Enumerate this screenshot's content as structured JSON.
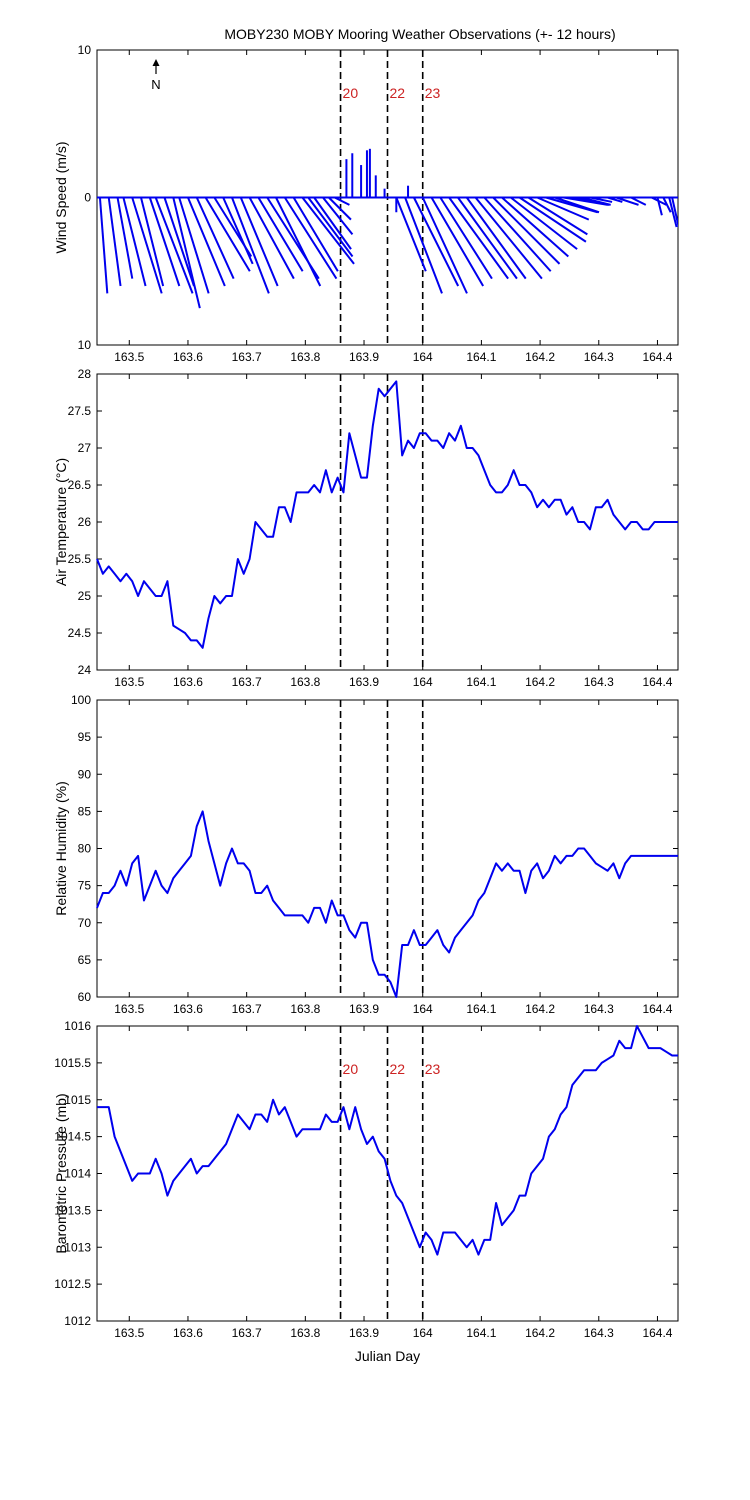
{
  "title": "MOBY230 MOBY Mooring Weather Observations (+- 12 hours)",
  "north_label": "N",
  "colors": {
    "series": "#0000ee",
    "events": "#000000",
    "event_labels": "#cc2222",
    "axes": "#000000",
    "background": "#ffffff"
  },
  "events": [
    {
      "label": "20",
      "x": 163.86
    },
    {
      "label": "22",
      "x": 163.94
    },
    {
      "label": "23",
      "x": 164.0
    }
  ],
  "chart_data": [
    {
      "type": "wind-stick",
      "ylabel": "Wind Speed (m/s)",
      "xlim": [
        163.445,
        164.435
      ],
      "ylim": [
        -10,
        10
      ],
      "y_ticks": [
        10,
        0,
        10
      ],
      "x_ticks": [
        "163.5",
        "163.6",
        "163.7",
        "163.8",
        "163.9",
        "164",
        "164.1",
        "164.2",
        "164.3",
        "164.4"
      ],
      "show_event_labels": true,
      "sticks": [
        {
          "x": 163.45,
          "u": 0.5,
          "v": -6.5
        },
        {
          "x": 163.465,
          "u": 0.8,
          "v": -6.0
        },
        {
          "x": 163.48,
          "u": 1.0,
          "v": -5.5
        },
        {
          "x": 163.49,
          "u": 1.5,
          "v": -6.0
        },
        {
          "x": 163.505,
          "u": 2.0,
          "v": -6.5
        },
        {
          "x": 163.52,
          "u": 1.5,
          "v": -6.0
        },
        {
          "x": 163.535,
          "u": 2.0,
          "v": -6.0
        },
        {
          "x": 163.545,
          "u": 2.5,
          "v": -6.5
        },
        {
          "x": 163.56,
          "u": 2.0,
          "v": -6.0
        },
        {
          "x": 163.575,
          "u": 1.8,
          "v": -7.5
        },
        {
          "x": 163.585,
          "u": 2.0,
          "v": -6.5
        },
        {
          "x": 163.6,
          "u": 2.5,
          "v": -6.0
        },
        {
          "x": 163.615,
          "u": 2.5,
          "v": -5.5
        },
        {
          "x": 163.63,
          "u": 3.0,
          "v": -5.0
        },
        {
          "x": 163.645,
          "u": 2.5,
          "v": -4.0
        },
        {
          "x": 163.66,
          "u": 2.0,
          "v": -4.5
        },
        {
          "x": 163.675,
          "u": 2.5,
          "v": -6.5
        },
        {
          "x": 163.69,
          "u": 2.5,
          "v": -6.0
        },
        {
          "x": 163.705,
          "u": 3.0,
          "v": -5.5
        },
        {
          "x": 163.72,
          "u": 3.0,
          "v": -5.0
        },
        {
          "x": 163.735,
          "u": 3.5,
          "v": -5.5
        },
        {
          "x": 163.75,
          "u": 3.0,
          "v": -6.0
        },
        {
          "x": 163.765,
          "u": 3.5,
          "v": -5.5
        },
        {
          "x": 163.78,
          "u": 3.0,
          "v": -5.0
        },
        {
          "x": 163.795,
          "u": 3.5,
          "v": -4.5
        },
        {
          "x": 163.805,
          "u": 3.0,
          "v": -4.0
        },
        {
          "x": 163.815,
          "u": 2.5,
          "v": -3.5
        },
        {
          "x": 163.83,
          "u": 2.0,
          "v": -2.5
        },
        {
          "x": 163.84,
          "u": 1.5,
          "v": -1.5
        },
        {
          "x": 163.85,
          "u": 1.0,
          "v": -0.5
        },
        {
          "x": 163.87,
          "u": 0.0,
          "v": 2.6
        },
        {
          "x": 163.88,
          "u": 0.0,
          "v": 3.0
        },
        {
          "x": 163.895,
          "u": 0.0,
          "v": 2.2
        },
        {
          "x": 163.905,
          "u": 0.0,
          "v": 3.2
        },
        {
          "x": 163.91,
          "u": 0.0,
          "v": 3.3
        },
        {
          "x": 163.92,
          "u": 0.0,
          "v": 1.5
        },
        {
          "x": 163.935,
          "u": 0.0,
          "v": 0.6
        },
        {
          "x": 163.955,
          "u": 0.0,
          "v": -1.0
        },
        {
          "x": 163.975,
          "u": 0.0,
          "v": 0.8
        },
        {
          "x": 163.955,
          "u": 2.0,
          "v": -5.0
        },
        {
          "x": 163.97,
          "u": 2.5,
          "v": -6.5
        },
        {
          "x": 163.985,
          "u": 3.0,
          "v": -6.0
        },
        {
          "x": 164.0,
          "u": 3.0,
          "v": -6.5
        },
        {
          "x": 164.015,
          "u": 3.5,
          "v": -6.0
        },
        {
          "x": 164.03,
          "u": 3.5,
          "v": -5.5
        },
        {
          "x": 164.045,
          "u": 4.0,
          "v": -5.5
        },
        {
          "x": 164.06,
          "u": 4.0,
          "v": -5.5
        },
        {
          "x": 164.075,
          "u": 4.0,
          "v": -5.5
        },
        {
          "x": 164.09,
          "u": 4.5,
          "v": -5.5
        },
        {
          "x": 164.105,
          "u": 4.5,
          "v": -5.0
        },
        {
          "x": 164.12,
          "u": 4.5,
          "v": -4.5
        },
        {
          "x": 164.135,
          "u": 4.5,
          "v": -4.0
        },
        {
          "x": 164.15,
          "u": 4.5,
          "v": -3.5
        },
        {
          "x": 164.165,
          "u": 4.5,
          "v": -3.0
        },
        {
          "x": 164.18,
          "u": 4.0,
          "v": -2.5
        },
        {
          "x": 164.195,
          "u": 3.5,
          "v": -1.5
        },
        {
          "x": 164.21,
          "u": 3.5,
          "v": -1.0
        },
        {
          "x": 164.225,
          "u": 3.0,
          "v": -1.0
        },
        {
          "x": 164.24,
          "u": 3.0,
          "v": -0.5
        },
        {
          "x": 164.255,
          "u": 2.5,
          "v": -0.5
        },
        {
          "x": 164.27,
          "u": 2.0,
          "v": -0.5
        },
        {
          "x": 164.285,
          "u": 1.5,
          "v": -0.3
        },
        {
          "x": 164.315,
          "u": 1.0,
          "v": -0.3
        },
        {
          "x": 164.33,
          "u": 1.5,
          "v": -0.5
        },
        {
          "x": 164.355,
          "u": 1.0,
          "v": -0.5
        },
        {
          "x": 164.39,
          "u": 1.0,
          "v": -0.5
        },
        {
          "x": 164.4,
          "u": 0.3,
          "v": -1.2
        },
        {
          "x": 164.41,
          "u": 0.5,
          "v": -1.0
        },
        {
          "x": 164.42,
          "u": 0.5,
          "v": -2.0
        },
        {
          "x": 164.425,
          "u": 1.0,
          "v": -4.5
        }
      ]
    },
    {
      "type": "line",
      "ylabel": "Air Temperature (°C)",
      "xlim": [
        163.445,
        164.435
      ],
      "ylim": [
        24,
        28
      ],
      "y_ticks": [
        "24",
        "24.5",
        "25",
        "25.5",
        "26",
        "26.5",
        "27",
        "27.5",
        "28"
      ],
      "x_ticks": [
        "163.5",
        "163.6",
        "163.7",
        "163.8",
        "163.9",
        "164",
        "164.1",
        "164.2",
        "164.3",
        "164.4"
      ],
      "show_event_labels": false,
      "x": [
        163.445,
        163.455,
        163.465,
        163.475,
        163.485,
        163.495,
        163.505,
        163.515,
        163.525,
        163.535,
        163.545,
        163.555,
        163.565,
        163.575,
        163.585,
        163.595,
        163.605,
        163.615,
        163.625,
        163.635,
        163.645,
        163.655,
        163.665,
        163.675,
        163.685,
        163.695,
        163.705,
        163.715,
        163.725,
        163.735,
        163.745,
        163.755,
        163.765,
        163.775,
        163.785,
        163.795,
        163.805,
        163.815,
        163.825,
        163.835,
        163.845,
        163.855,
        163.865,
        163.875,
        163.885,
        163.895,
        163.905,
        163.915,
        163.925,
        163.935,
        163.945,
        163.955,
        163.965,
        163.975,
        163.985,
        163.995,
        164.005,
        164.015,
        164.025,
        164.035,
        164.045,
        164.055,
        164.065,
        164.075,
        164.085,
        164.095,
        164.105,
        164.115,
        164.125,
        164.135,
        164.145,
        164.155,
        164.165,
        164.175,
        164.185,
        164.195,
        164.205,
        164.215,
        164.225,
        164.235,
        164.245,
        164.255,
        164.265,
        164.275,
        164.285,
        164.295,
        164.305,
        164.315,
        164.325,
        164.335,
        164.345,
        164.355,
        164.365,
        164.375,
        164.385,
        164.395,
        164.405,
        164.415,
        164.425,
        164.435
      ],
      "values": [
        25.5,
        25.3,
        25.4,
        25.3,
        25.2,
        25.3,
        25.2,
        25.0,
        25.2,
        25.1,
        25.0,
        25.0,
        25.2,
        24.6,
        24.55,
        24.5,
        24.4,
        24.4,
        24.3,
        24.7,
        25.0,
        24.9,
        25.0,
        25.0,
        25.5,
        25.3,
        25.5,
        26.0,
        25.9,
        25.8,
        25.8,
        26.2,
        26.2,
        26.0,
        26.4,
        26.4,
        26.4,
        26.5,
        26.4,
        26.7,
        26.4,
        26.6,
        26.4,
        27.2,
        26.9,
        26.6,
        26.6,
        27.3,
        27.8,
        27.7,
        27.8,
        27.9,
        26.9,
        27.1,
        27.0,
        27.2,
        27.2,
        27.1,
        27.1,
        27.0,
        27.2,
        27.1,
        27.3,
        27.0,
        27.0,
        26.9,
        26.7,
        26.5,
        26.4,
        26.4,
        26.5,
        26.7,
        26.5,
        26.5,
        26.4,
        26.2,
        26.3,
        26.2,
        26.3,
        26.3,
        26.1,
        26.2,
        26.0,
        26.0,
        25.9,
        26.2,
        26.2,
        26.3,
        26.1,
        26.0,
        25.9,
        26.0,
        26.0,
        25.9,
        25.9,
        26.0,
        26.0,
        26.0,
        26.0,
        26.0
      ]
    },
    {
      "type": "line",
      "ylabel": "Relative Humidity (%)",
      "xlim": [
        163.445,
        164.435
      ],
      "ylim": [
        60,
        100
      ],
      "y_ticks": [
        "60",
        "65",
        "70",
        "75",
        "80",
        "85",
        "90",
        "95",
        "100"
      ],
      "x_ticks": [
        "163.5",
        "163.6",
        "163.7",
        "163.8",
        "163.9",
        "164",
        "164.1",
        "164.2",
        "164.3",
        "164.4"
      ],
      "show_event_labels": false,
      "x": [
        163.445,
        163.455,
        163.465,
        163.475,
        163.485,
        163.495,
        163.505,
        163.515,
        163.525,
        163.535,
        163.545,
        163.555,
        163.565,
        163.575,
        163.585,
        163.595,
        163.605,
        163.615,
        163.625,
        163.635,
        163.645,
        163.655,
        163.665,
        163.675,
        163.685,
        163.695,
        163.705,
        163.715,
        163.725,
        163.735,
        163.745,
        163.755,
        163.765,
        163.775,
        163.785,
        163.795,
        163.805,
        163.815,
        163.825,
        163.835,
        163.845,
        163.855,
        163.865,
        163.875,
        163.885,
        163.895,
        163.905,
        163.915,
        163.925,
        163.935,
        163.945,
        163.955,
        163.965,
        163.975,
        163.985,
        163.995,
        164.005,
        164.015,
        164.025,
        164.035,
        164.045,
        164.055,
        164.065,
        164.075,
        164.085,
        164.095,
        164.105,
        164.115,
        164.125,
        164.135,
        164.145,
        164.155,
        164.165,
        164.175,
        164.185,
        164.195,
        164.205,
        164.215,
        164.225,
        164.235,
        164.245,
        164.255,
        164.265,
        164.275,
        164.285,
        164.295,
        164.305,
        164.315,
        164.325,
        164.335,
        164.345,
        164.355,
        164.365,
        164.375,
        164.385,
        164.395,
        164.405,
        164.415,
        164.425,
        164.435
      ],
      "values": [
        72,
        74,
        74,
        75,
        77,
        75,
        78,
        79,
        73,
        75,
        77,
        75,
        74,
        76,
        77,
        78,
        79,
        83,
        85,
        81,
        78,
        75,
        78,
        80,
        78,
        78,
        77,
        74,
        74,
        75,
        73,
        72,
        71,
        71,
        71,
        71,
        70,
        72,
        72,
        70,
        73,
        71,
        71,
        69,
        68,
        70,
        70,
        65,
        63,
        63,
        62,
        60,
        67,
        67,
        69,
        67,
        67,
        68,
        69,
        67,
        66,
        68,
        69,
        70,
        71,
        73,
        74,
        76,
        78,
        77,
        78,
        77,
        77,
        74,
        77,
        78,
        76,
        77,
        79,
        78,
        79,
        79,
        80,
        80,
        79,
        78,
        77.5,
        77,
        78,
        76,
        78,
        79,
        79,
        79,
        79,
        79,
        79,
        79,
        79,
        79
      ]
    },
    {
      "type": "line",
      "ylabel": "Barometric Pressure (mb)",
      "xlabel": "Julian Day",
      "xlim": [
        163.445,
        164.435
      ],
      "ylim": [
        1012,
        1016
      ],
      "y_ticks": [
        "1012",
        "1012.5",
        "1013",
        "1013.5",
        "1014",
        "1014.5",
        "1015",
        "1015.5",
        "1016"
      ],
      "x_ticks": [
        "163.5",
        "163.6",
        "163.7",
        "163.8",
        "163.9",
        "164",
        "164.1",
        "164.2",
        "164.3",
        "164.4"
      ],
      "show_event_labels": true,
      "x": [
        163.445,
        163.455,
        163.465,
        163.475,
        163.485,
        163.495,
        163.505,
        163.515,
        163.525,
        163.535,
        163.545,
        163.555,
        163.565,
        163.575,
        163.585,
        163.595,
        163.605,
        163.615,
        163.625,
        163.635,
        163.645,
        163.655,
        163.665,
        163.675,
        163.685,
        163.695,
        163.705,
        163.715,
        163.725,
        163.735,
        163.745,
        163.755,
        163.765,
        163.775,
        163.785,
        163.795,
        163.805,
        163.815,
        163.825,
        163.835,
        163.845,
        163.855,
        163.865,
        163.875,
        163.885,
        163.895,
        163.905,
        163.915,
        163.925,
        163.935,
        163.945,
        163.955,
        163.965,
        163.975,
        163.985,
        163.995,
        164.005,
        164.015,
        164.025,
        164.035,
        164.045,
        164.055,
        164.065,
        164.075,
        164.085,
        164.095,
        164.105,
        164.115,
        164.125,
        164.135,
        164.145,
        164.155,
        164.165,
        164.175,
        164.185,
        164.195,
        164.205,
        164.215,
        164.225,
        164.235,
        164.245,
        164.255,
        164.265,
        164.275,
        164.285,
        164.295,
        164.305,
        164.315,
        164.325,
        164.335,
        164.345,
        164.355,
        164.365,
        164.375,
        164.385,
        164.395,
        164.405,
        164.415,
        164.425,
        164.435
      ],
      "values": [
        1014.9,
        1014.9,
        1014.9,
        1014.5,
        1014.3,
        1014.1,
        1013.9,
        1014.0,
        1014.0,
        1014.0,
        1014.2,
        1014.0,
        1013.7,
        1013.9,
        1014.0,
        1014.1,
        1014.2,
        1014.0,
        1014.1,
        1014.1,
        1014.2,
        1014.3,
        1014.4,
        1014.6,
        1014.8,
        1014.7,
        1014.6,
        1014.8,
        1014.8,
        1014.7,
        1015.0,
        1014.8,
        1014.9,
        1014.7,
        1014.5,
        1014.6,
        1014.6,
        1014.6,
        1014.6,
        1014.8,
        1014.7,
        1014.7,
        1014.9,
        1014.6,
        1014.9,
        1014.6,
        1014.4,
        1014.5,
        1014.3,
        1014.2,
        1013.9,
        1013.7,
        1013.6,
        1013.4,
        1013.2,
        1013.0,
        1013.2,
        1013.1,
        1012.9,
        1013.2,
        1013.2,
        1013.2,
        1013.1,
        1013.0,
        1013.1,
        1012.9,
        1013.1,
        1013.1,
        1013.6,
        1013.3,
        1013.4,
        1013.5,
        1013.7,
        1013.7,
        1014.0,
        1014.1,
        1014.2,
        1014.5,
        1014.6,
        1014.8,
        1014.9,
        1015.2,
        1015.3,
        1015.4,
        1015.4,
        1015.4,
        1015.5,
        1015.55,
        1015.6,
        1015.8,
        1015.7,
        1015.7,
        1016.0,
        1015.85,
        1015.7,
        1015.7,
        1015.7,
        1015.65,
        1015.6,
        1015.6
      ]
    }
  ]
}
